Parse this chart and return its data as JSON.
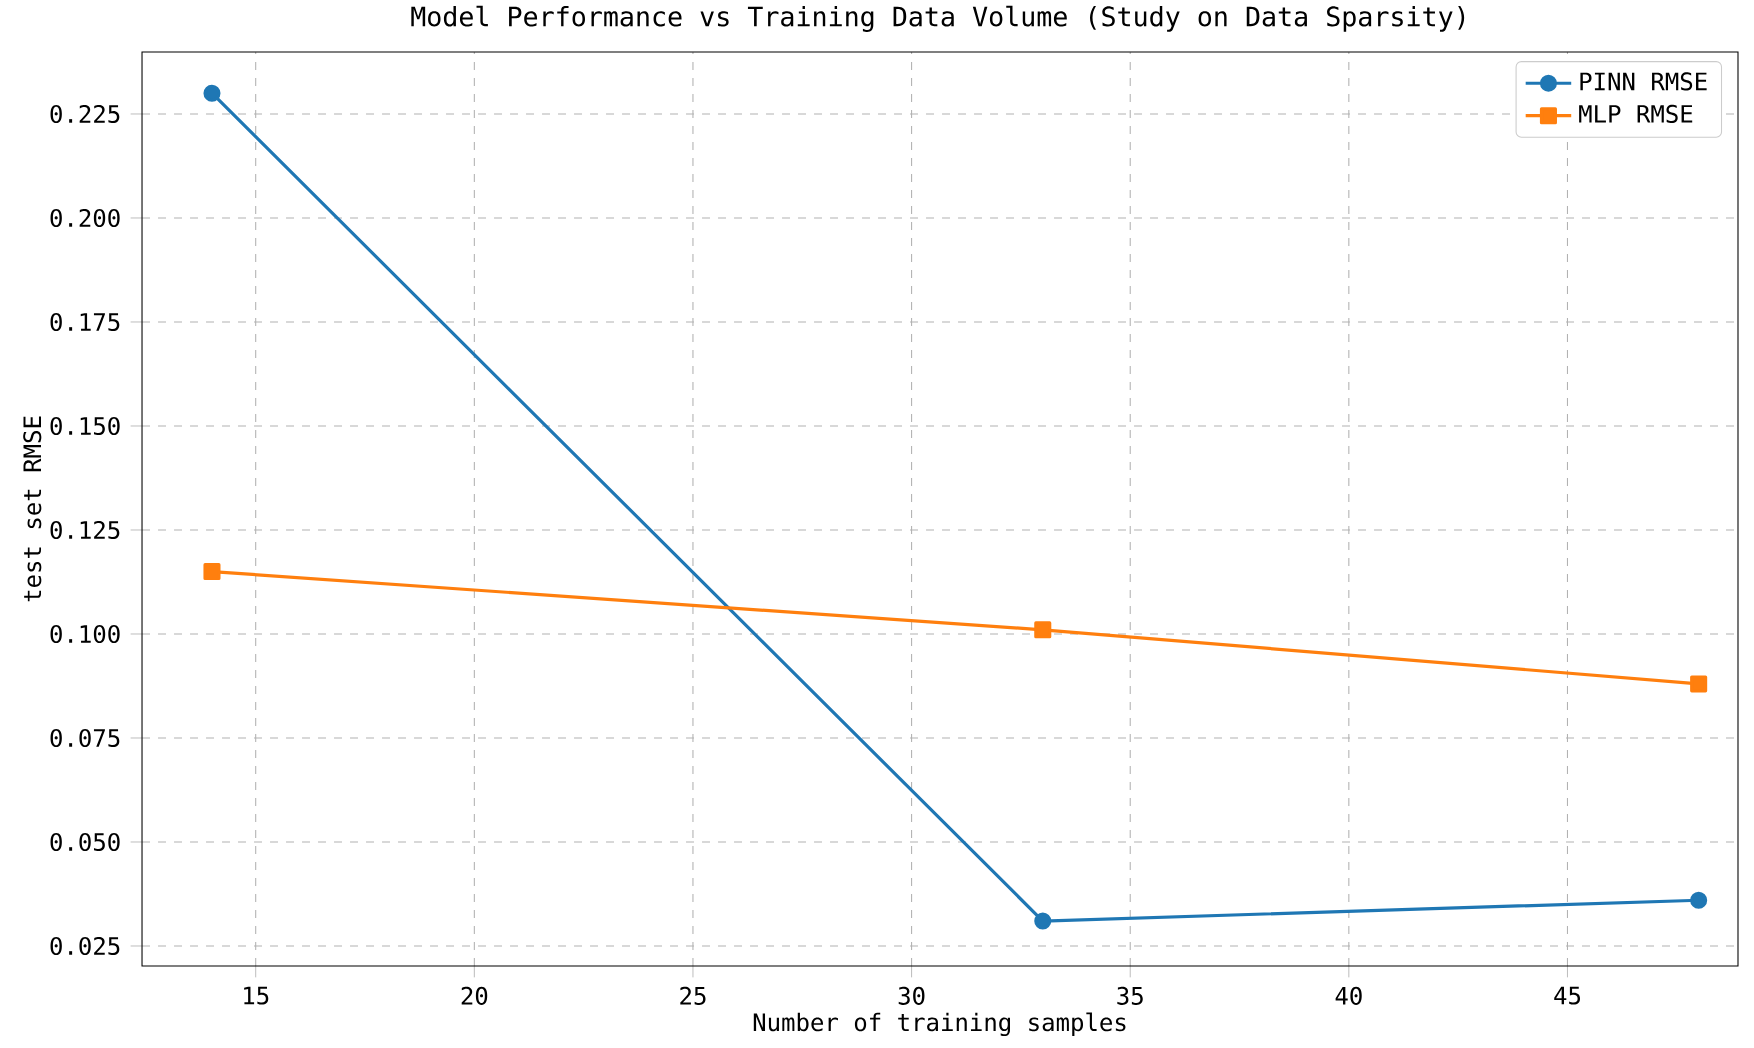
{
  "chart_data": {
    "type": "line",
    "title": "Model Performance vs Training Data Volume (Study on Data Sparsity)",
    "xlabel": "Number of training samples",
    "ylabel": "test set RMSE",
    "x": [
      14,
      33,
      48
    ],
    "series": [
      {
        "name": "PINN RMSE",
        "color": "#1f77b4",
        "marker": "circle",
        "values": [
          0.23,
          0.031,
          0.036
        ]
      },
      {
        "name": "MLP RMSE",
        "color": "#ff7f0e",
        "marker": "square",
        "values": [
          0.115,
          0.101,
          0.088
        ]
      }
    ],
    "xlim": [
      12.4,
      48.9
    ],
    "ylim": [
      0.0202,
      0.2399
    ],
    "xticks": [
      15,
      20,
      25,
      30,
      35,
      40,
      45
    ],
    "yticks": [
      0.025,
      {
        "value": 0.05,
        "label": "0.050"
      },
      0.075,
      {
        "value": 0.1,
        "label": "0.100"
      },
      0.125,
      {
        "value": 0.15,
        "label": "0.150"
      },
      0.175,
      {
        "value": 0.2,
        "label": "0.200"
      },
      0.225
    ],
    "grid": true,
    "legend": "top right",
    "line_style": "solid"
  }
}
